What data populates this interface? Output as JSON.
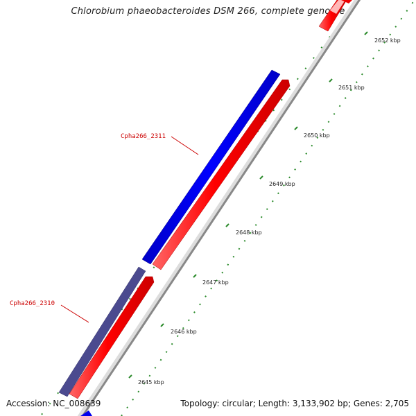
{
  "title": "Chlorobium phaeobacteroides DSM 266, complete genome",
  "footer": {
    "accession": "Accession: NC_008639",
    "summary": "Topology: circular; Length: 3,133,902 bp; Genes: 2,705"
  },
  "genes": [
    {
      "label": "Cpha266_2311"
    },
    {
      "label": "Cpha266_2310"
    }
  ],
  "ticks": [
    {
      "label": "2645 kbp"
    },
    {
      "label": "2646 kbp"
    },
    {
      "label": "2647 kbp"
    },
    {
      "label": "2648 kbp"
    },
    {
      "label": "2649 kbp"
    },
    {
      "label": "2650 kbp"
    },
    {
      "label": "2651 kbp"
    },
    {
      "label": "2652 kbp"
    }
  ],
  "colors": {
    "forward_cds": "#0000ee",
    "forward_cds_alt": "#4b4a8f",
    "reverse_cds": "#ee0000",
    "backbone": "#888888",
    "tick": "#2a8a2a",
    "gene_label": "#cc0000"
  }
}
